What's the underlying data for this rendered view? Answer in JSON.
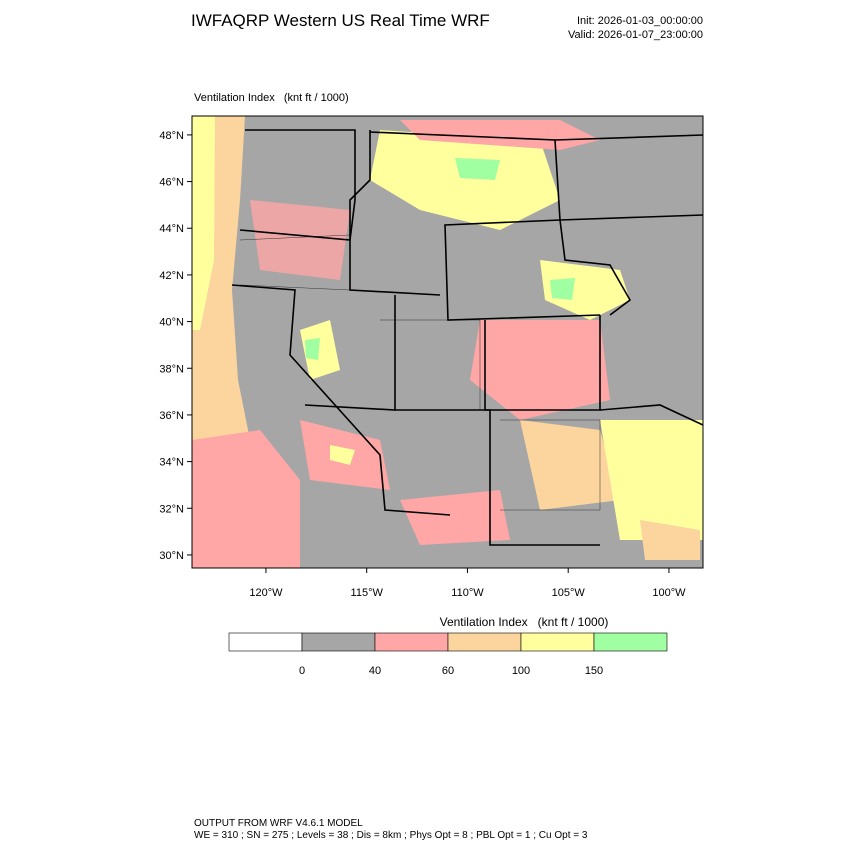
{
  "header": {
    "title": "IWFAQRP Western US Real Time WRF",
    "init": "Init: 2026-01-03_00:00:00",
    "valid": "Valid: 2026-01-07_23:00:00"
  },
  "map": {
    "field_label": "Ventilation Index   (knt ft / 1000)",
    "ylim": [
      29.44,
      48.81
    ],
    "yticks": [
      {
        "value": 30,
        "label": "30°N"
      },
      {
        "value": 32,
        "label": "32°N"
      },
      {
        "value": 34,
        "label": "34°N"
      },
      {
        "value": 36,
        "label": "36°N"
      },
      {
        "value": 38,
        "label": "38°N"
      },
      {
        "value": 40,
        "label": "40°N"
      },
      {
        "value": 42,
        "label": "42°N"
      },
      {
        "value": 44,
        "label": "44°N"
      },
      {
        "value": 46,
        "label": "46°N"
      },
      {
        "value": 48,
        "label": "48°N"
      }
    ],
    "xlim": [
      -123.67,
      -98.31
    ],
    "xticks": [
      {
        "value": -120,
        "label": "120°W"
      },
      {
        "value": -115,
        "label": "115°W"
      },
      {
        "value": -110,
        "label": "110°W"
      },
      {
        "value": -105,
        "label": "105°W"
      },
      {
        "value": -100,
        "label": "100°W"
      }
    ]
  },
  "colorbar": {
    "title": "Ventilation Index   (knt ft / 1000)",
    "levels": [
      0,
      40,
      60,
      100,
      150
    ],
    "colors": [
      "#ffffff",
      "#a6a6a6",
      "#ffa6a6",
      "#fcd59e",
      "#ffff9e",
      "#a0ffa0"
    ]
  },
  "footer": {
    "line1": "OUTPUT FROM WRF V4.6.1 MODEL",
    "line2": "WE = 310 ; SN = 275 ; Levels = 38 ; Dis = 8km ; Phys Opt = 8 ; PBL Opt = 1 ; Cu Opt = 3"
  }
}
